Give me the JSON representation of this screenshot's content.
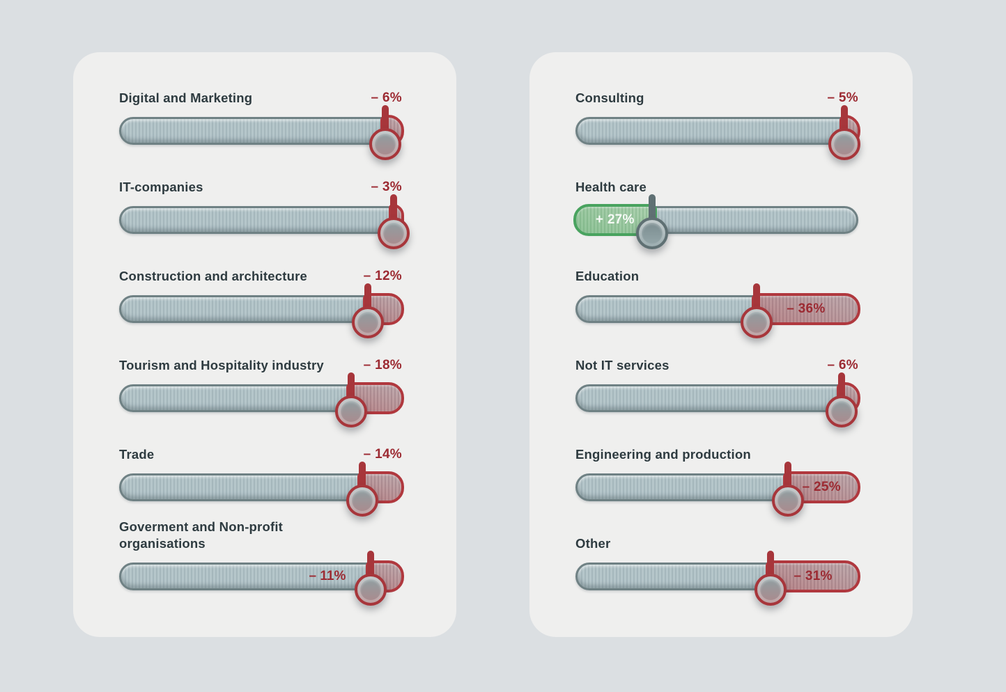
{
  "colors": {
    "page_background": "#dbdfe2",
    "card_background": "#efefee",
    "label_text": "#2e3b40",
    "negative_accent": "#a7363b",
    "negative_text": "#9c2a32",
    "positive_accent": "#49a35f",
    "track_fill": "#adbfc4",
    "track_border": "#6f8184"
  },
  "chart_data": {
    "type": "bar",
    "subtype": "slider-change-chart",
    "unit": "%",
    "legend_position": "none",
    "grid": false,
    "description_visible_text_only": true,
    "panels": [
      {
        "rows": [
          {
            "label": "Digital and Marketing",
            "value": -6,
            "value_label": "– 6%",
            "direction": "negative",
            "value_position": "above"
          },
          {
            "label": "IT-companies",
            "value": -3,
            "value_label": "– 3%",
            "direction": "negative",
            "value_position": "above"
          },
          {
            "label": "Construction and architecture",
            "value": -12,
            "value_label": "– 12%",
            "direction": "negative",
            "value_position": "above"
          },
          {
            "label": "Tourism and Hospitality industry",
            "value": -18,
            "value_label": "– 18%",
            "direction": "negative",
            "value_position": "above"
          },
          {
            "label": "Trade",
            "value": -14,
            "value_label": "– 14%",
            "direction": "negative",
            "value_position": "above"
          },
          {
            "label": "Goverment and Non-profit\norganisations",
            "value": -11,
            "value_label": "– 11%",
            "direction": "negative",
            "value_position": "track"
          }
        ]
      },
      {
        "rows": [
          {
            "label": "Consulting",
            "value": -5,
            "value_label": "– 5%",
            "direction": "negative",
            "value_position": "above"
          },
          {
            "label": "Health care",
            "value": 27,
            "value_label": "+ 27%",
            "direction": "positive",
            "value_position": "region"
          },
          {
            "label": "Education",
            "value": -36,
            "value_label": "– 36%",
            "direction": "negative",
            "value_position": "region"
          },
          {
            "label": "Not IT services",
            "value": -6,
            "value_label": "– 6%",
            "direction": "negative",
            "value_position": "above"
          },
          {
            "label": "Engineering and production",
            "value": -25,
            "value_label": "– 25%",
            "direction": "negative",
            "value_position": "region"
          },
          {
            "label": "Other",
            "value": -31,
            "value_label": "– 31%",
            "direction": "negative",
            "value_position": "region"
          }
        ]
      }
    ]
  }
}
